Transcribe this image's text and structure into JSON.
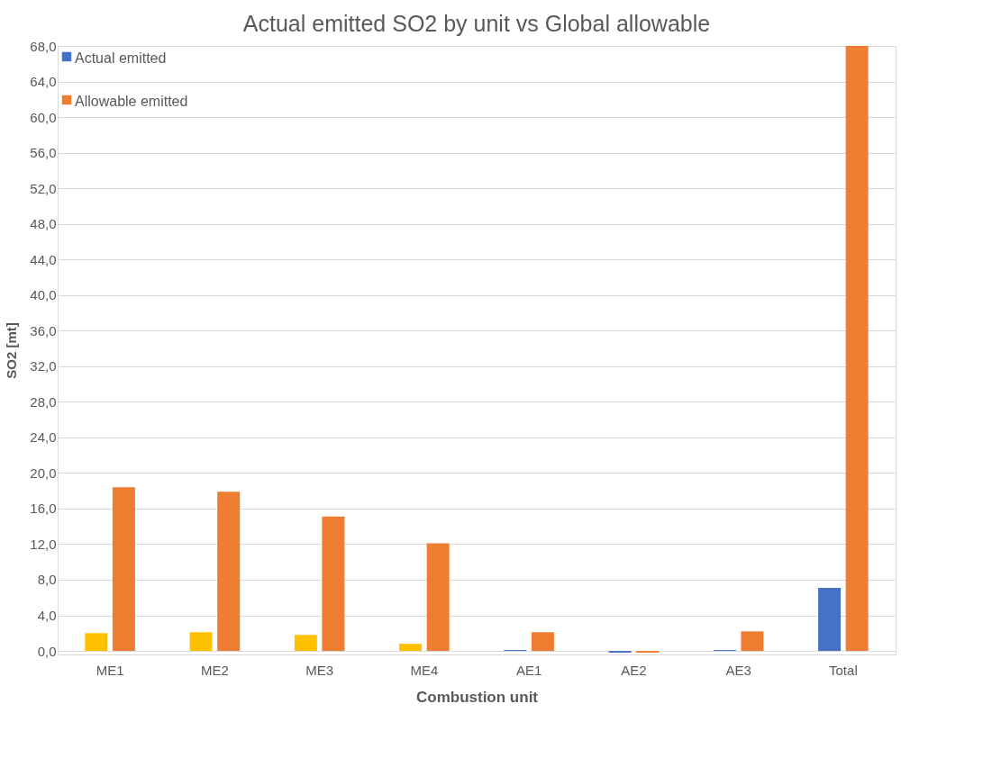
{
  "chart_data": {
    "type": "bar",
    "title": "Actual emitted SO2 by unit vs Global allowable",
    "xlabel": "Combustion unit",
    "ylabel": "SO2 [mt]",
    "categories": [
      "ME1",
      "ME2",
      "ME3",
      "ME4",
      "AE1",
      "AE2",
      "AE3",
      "Total"
    ],
    "series": [
      {
        "name": "Actual emitted",
        "color": "#4472c4",
        "colors": [
          "#ffc000",
          "#ffc000",
          "#ffc000",
          "#ffc000",
          "#4472c4",
          "#4472c4",
          "#4472c4",
          "#4472c4"
        ],
        "values": [
          2.0,
          2.1,
          1.8,
          0.8,
          0.1,
          -0.2,
          0.1,
          7.1
        ]
      },
      {
        "name": "Allowable emitted",
        "color": "#ed7d31",
        "values": [
          18.4,
          17.9,
          15.1,
          12.1,
          2.1,
          -0.2,
          2.2,
          68.0
        ]
      }
    ],
    "ylim": [
      -0.4,
      68
    ],
    "yticks": [
      {
        "value": 0,
        "label": "0,0"
      },
      {
        "value": 4,
        "label": "4,0"
      },
      {
        "value": 8,
        "label": "8,0"
      },
      {
        "value": 12,
        "label": "12,0"
      },
      {
        "value": 16,
        "label": "16,0"
      },
      {
        "value": 20,
        "label": "20,0"
      },
      {
        "value": 24,
        "label": "24,0"
      },
      {
        "value": 28,
        "label": "28,0"
      },
      {
        "value": 32,
        "label": "32,0"
      },
      {
        "value": 36,
        "label": "36,0"
      },
      {
        "value": 40,
        "label": "40,0"
      },
      {
        "value": 44,
        "label": "44,0"
      },
      {
        "value": 48,
        "label": "48,0"
      },
      {
        "value": 52,
        "label": "52,0"
      },
      {
        "value": 56,
        "label": "56,0"
      },
      {
        "value": 60,
        "label": "60,0"
      },
      {
        "value": 64,
        "label": "64,0"
      },
      {
        "value": 68,
        "label": "68,0"
      }
    ],
    "grid": "y",
    "legend": "top left"
  }
}
